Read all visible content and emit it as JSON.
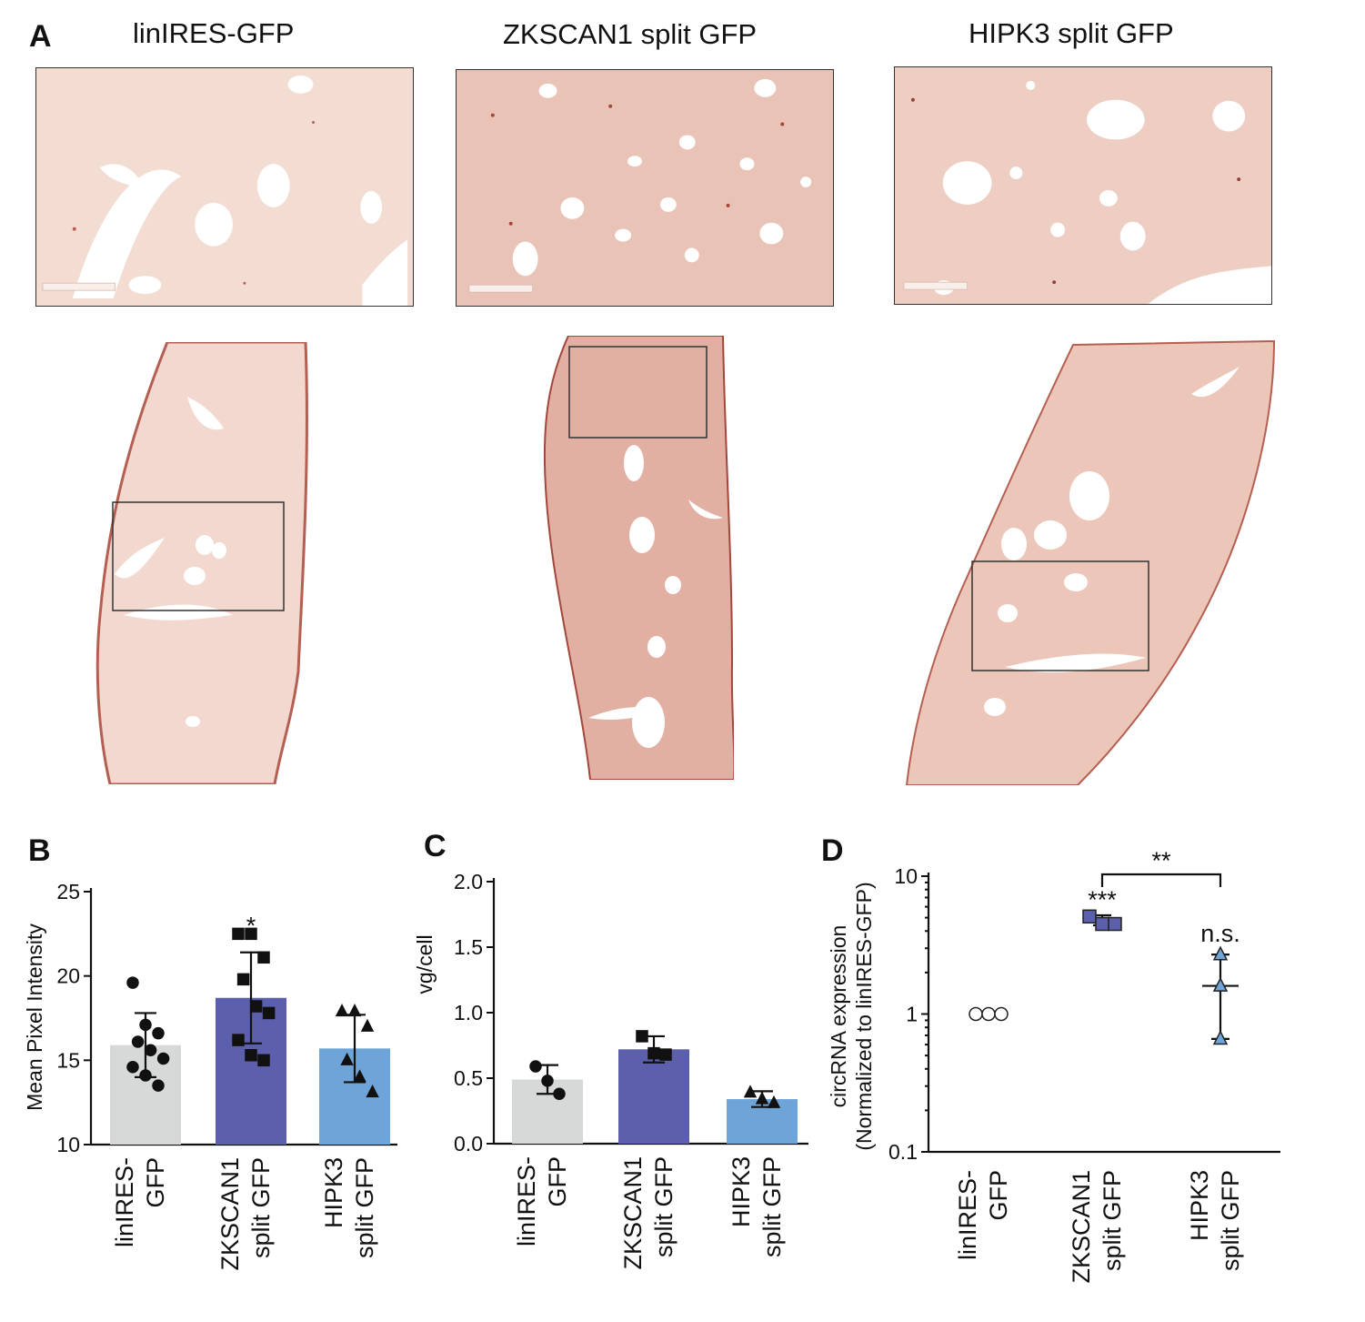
{
  "panel_a": {
    "letter": "A",
    "titles": [
      "linIRES-GFP",
      "ZKSCAN1 split GFP",
      "HIPK3 split GFP"
    ],
    "image_description_tags": [
      "microscopy-tissue-section"
    ]
  },
  "panel_b": {
    "letter": "B"
  },
  "panel_c": {
    "letter": "C"
  },
  "panel_d": {
    "letter": "D"
  },
  "colors": {
    "grey_bar": "#d7d9d9",
    "dark_blue_bar": "#5c5fab",
    "light_blue_bar": "#6ea4d7",
    "tissue": "#edc9bc",
    "tissue_dark": "#b55f53"
  },
  "chart_data": [
    {
      "panel": "B",
      "type": "bar",
      "categories": [
        [
          "linIRES-",
          "GFP"
        ],
        [
          "ZKSCAN1",
          "split GFP"
        ],
        [
          "HIPK3",
          "split GFP"
        ]
      ],
      "values": [
        15.9,
        18.7,
        15.7
      ],
      "errors": [
        1.9,
        2.7,
        2.0
      ],
      "points": [
        [
          19.6,
          17.1,
          16.6,
          16.1,
          15.6,
          15.1,
          14.6,
          14.1,
          13.5
        ],
        [
          22.5,
          22.5,
          21.1,
          19.8,
          18.2,
          17.8,
          16.2,
          15.3,
          15.0
        ],
        [
          17.9,
          17.9,
          17.0,
          15.0,
          14.0,
          13.1
        ]
      ],
      "ylabel": "Mean Pixel Intensity",
      "ylim": [
        10,
        25
      ],
      "yticks": [
        "10",
        "15",
        "20",
        "25"
      ],
      "annotation": "*"
    },
    {
      "panel": "C",
      "type": "bar",
      "categories": [
        [
          "linIRES-",
          "GFP"
        ],
        [
          "ZKSCAN1",
          "split GFP"
        ],
        [
          "HIPK3",
          "split GFP"
        ]
      ],
      "values": [
        0.49,
        0.72,
        0.34
      ],
      "errors": [
        0.11,
        0.1,
        0.06
      ],
      "points": [
        [
          0.59,
          0.48,
          0.38
        ],
        [
          0.82,
          0.69,
          0.68
        ],
        [
          0.39,
          0.34,
          0.31
        ]
      ],
      "ylabel": "vg/cell",
      "ylim": [
        0,
        2
      ],
      "yticks": [
        "0.0",
        "0.5",
        "1.0",
        "1.5",
        "2.0"
      ]
    },
    {
      "panel": "D",
      "type": "scatter",
      "log_y": true,
      "categories": [
        [
          "linIRES-",
          "GFP"
        ],
        [
          "ZKSCAN1",
          "split GFP"
        ],
        [
          "HIPK3",
          "split GFP"
        ]
      ],
      "means": [
        1.0,
        4.8,
        1.6
      ],
      "errors_low": [
        1.0,
        4.4,
        0.66
      ],
      "errors_high": [
        1.0,
        5.2,
        2.7
      ],
      "points": [
        [
          1.0,
          1.0,
          1.0
        ],
        [
          5.1,
          4.5,
          4.5
        ],
        [
          2.7,
          1.6,
          0.66
        ]
      ],
      "ylabel": [
        "circRNA expression",
        "(Normalized to linIRES-GFP)"
      ],
      "ylim": [
        0.1,
        10
      ],
      "yticks": [
        "0.1",
        "1",
        "10"
      ],
      "annotations": [
        "***",
        "n.s.",
        "**"
      ]
    }
  ]
}
